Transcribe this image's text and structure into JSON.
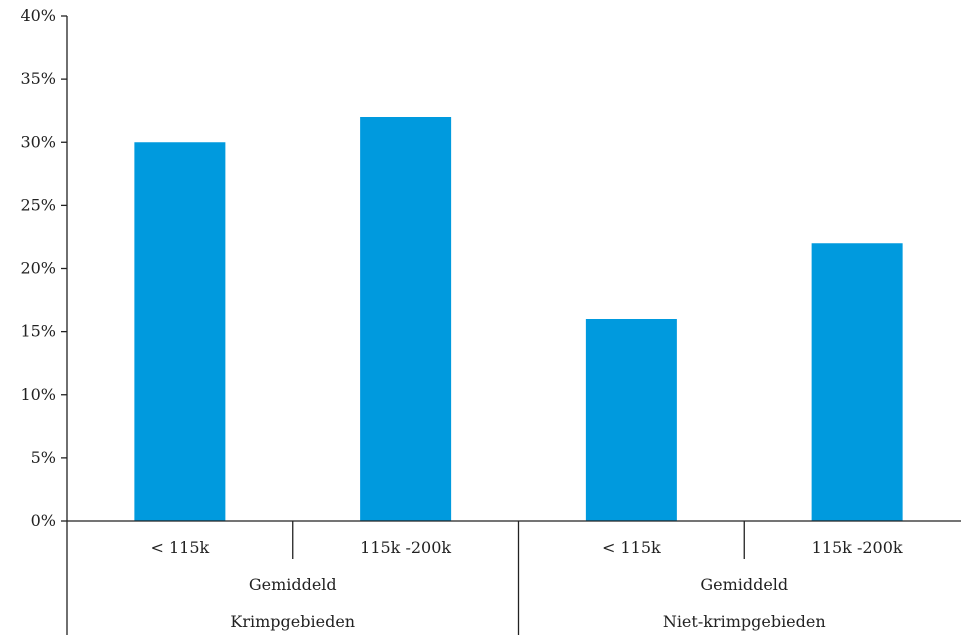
{
  "chart_data": {
    "type": "bar",
    "title": "",
    "xlabel": "",
    "ylabel": "",
    "ylim": [
      0,
      40
    ],
    "yticks": [
      "0%",
      "5%",
      "10%",
      "15%",
      "20%",
      "25%",
      "30%",
      "35%",
      "40%"
    ],
    "grid": false,
    "legend": "none",
    "bar_color": "#009ADE",
    "categories": [
      "< 115k",
      "115k -200k",
      "< 115k",
      "115k -200k"
    ],
    "groups": [
      {
        "label_1": "Gemiddeld",
        "label_2": "Krimpgebieden",
        "span": [
          0,
          1
        ]
      },
      {
        "label_1": "Gemiddeld",
        "label_2": "Niet-krimpgebieden",
        "span": [
          2,
          3
        ]
      }
    ],
    "values": [
      30,
      32,
      16,
      22
    ]
  }
}
